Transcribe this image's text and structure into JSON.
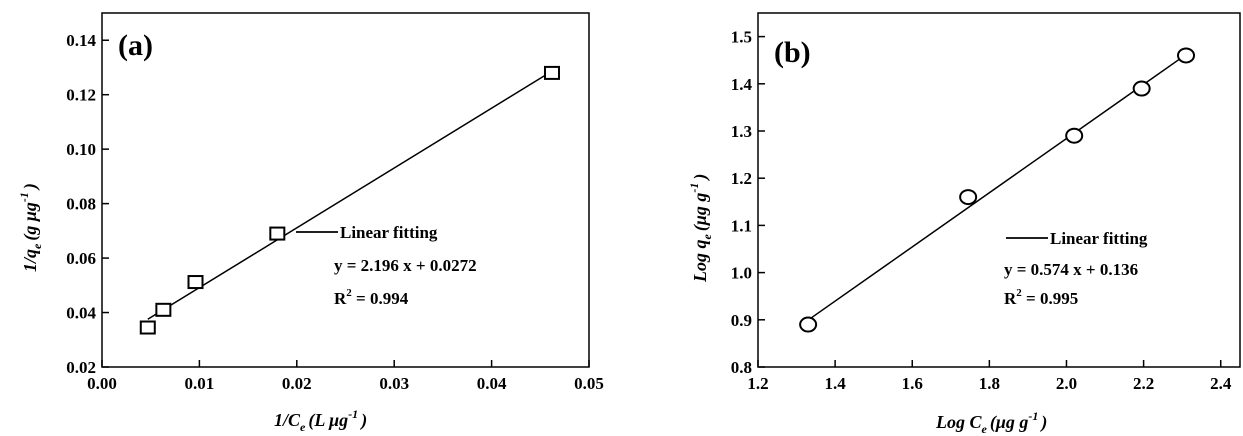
{
  "chart_data": [
    {
      "type": "scatter",
      "panel_label": "(a)",
      "xlabel": {
        "main": "1/C",
        "sub": "e",
        "unit_pre": "(L μg",
        "unit_sup": "-1",
        "unit_post": ")"
      },
      "ylabel": {
        "main": "1/q",
        "sub": "e",
        "unit_pre": "(g μg",
        "unit_sup": "-1",
        "unit_post": ")"
      },
      "xlim": [
        0.0,
        0.05
      ],
      "ylim": [
        0.02,
        0.15
      ],
      "xticks": [
        0.0,
        0.01,
        0.02,
        0.03,
        0.04,
        0.05
      ],
      "xtick_labels": [
        "0.00",
        "0.01",
        "0.02",
        "0.03",
        "0.04",
        "0.05"
      ],
      "yticks": [
        0.02,
        0.04,
        0.06,
        0.08,
        0.1,
        0.12,
        0.14
      ],
      "ytick_labels": [
        "0.02",
        "0.04",
        "0.06",
        "0.08",
        "0.10",
        "0.12",
        "0.14"
      ],
      "marker": "square",
      "points": [
        {
          "x": 0.0047,
          "y": 0.0345
        },
        {
          "x": 0.0063,
          "y": 0.041
        },
        {
          "x": 0.0096,
          "y": 0.0512
        },
        {
          "x": 0.018,
          "y": 0.069
        },
        {
          "x": 0.0462,
          "y": 0.128
        }
      ],
      "fit": {
        "x_range": [
          0.0047,
          0.0462
        ],
        "slope": 2.196,
        "intercept": 0.0272
      },
      "legend": {
        "line_label": "Linear fitting",
        "equation": "y = 2.196 x + 0.0272",
        "r2_pre": "R",
        "r2_sup": "2",
        "r2_post": " = 0.994"
      }
    },
    {
      "type": "scatter",
      "panel_label": "(b)",
      "xlabel": {
        "main": "Log C",
        "sub": "e",
        "unit_pre": "(μg g",
        "unit_sup": "-1",
        "unit_post": ")"
      },
      "ylabel": {
        "main": "Log q",
        "sub": "e",
        "unit_pre": "(μg g",
        "unit_sup": "-1",
        "unit_post": ")"
      },
      "xlim": [
        1.2,
        2.45
      ],
      "ylim": [
        0.8,
        1.55
      ],
      "xticks": [
        1.2,
        1.4,
        1.6,
        1.8,
        2.0,
        2.2,
        2.4
      ],
      "xtick_labels": [
        "1.2",
        "1.4",
        "1.6",
        "1.8",
        "2.0",
        "2.2",
        "2.4"
      ],
      "yticks": [
        0.8,
        0.9,
        1.0,
        1.1,
        1.2,
        1.3,
        1.4,
        1.5
      ],
      "ytick_labels": [
        "0.8",
        "0.9",
        "1.0",
        "1.1",
        "1.2",
        "1.3",
        "1.4",
        "1.5"
      ],
      "marker": "circle",
      "points": [
        {
          "x": 1.33,
          "y": 0.89
        },
        {
          "x": 1.745,
          "y": 1.16
        },
        {
          "x": 2.02,
          "y": 1.29
        },
        {
          "x": 2.195,
          "y": 1.39
        },
        {
          "x": 2.31,
          "y": 1.46
        }
      ],
      "fit": {
        "x_range": [
          1.33,
          2.31
        ],
        "slope": 0.574,
        "intercept": 0.136
      },
      "legend": {
        "line_label": "Linear fitting",
        "equation": "y = 0.574 x + 0.136",
        "r2_pre": "R",
        "r2_sup": "2",
        "r2_post": " = 0.995"
      }
    }
  ]
}
